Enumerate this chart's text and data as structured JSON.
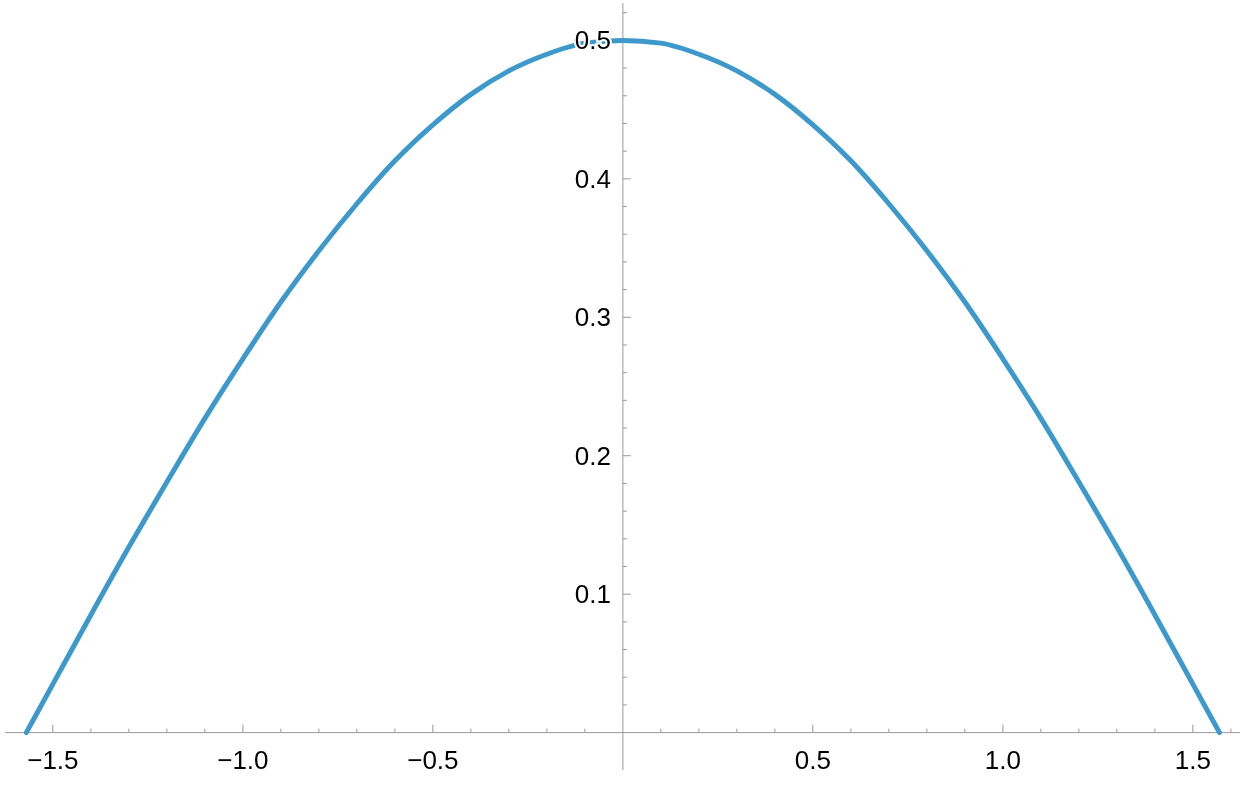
{
  "chart_data": {
    "type": "line",
    "x": [
      -1.57,
      -1.5,
      -1.4,
      -1.3,
      -1.2,
      -1.1,
      -1.0,
      -0.9,
      -0.8,
      -0.7,
      -0.6,
      -0.5,
      -0.4,
      -0.3,
      -0.2,
      -0.1,
      0,
      0.1,
      0.2,
      0.3,
      0.4,
      0.5,
      0.6,
      0.7,
      0.8,
      0.9,
      1.0,
      1.1,
      1.2,
      1.3,
      1.4,
      1.5,
      1.57
    ],
    "series": [
      {
        "color": "#3d98cc",
        "values": [
          0.0,
          0.035,
          0.085,
          0.134,
          0.181,
          0.227,
          0.27,
          0.311,
          0.348,
          0.382,
          0.413,
          0.439,
          0.461,
          0.478,
          0.49,
          0.498,
          0.5,
          0.498,
          0.49,
          0.478,
          0.461,
          0.439,
          0.413,
          0.382,
          0.348,
          0.311,
          0.27,
          0.227,
          0.181,
          0.134,
          0.085,
          0.035,
          0.0
        ]
      }
    ],
    "xlim": [
      -1.626,
      1.624
    ],
    "ylim": [
      -0.027,
      0.527
    ],
    "xticks": [
      {
        "value": -1.5,
        "label": "−1.5"
      },
      {
        "value": -1.4,
        "label": null
      },
      {
        "value": -1.3,
        "label": null
      },
      {
        "value": -1.2,
        "label": null
      },
      {
        "value": -1.1,
        "label": null
      },
      {
        "value": -1.0,
        "label": "−1.0"
      },
      {
        "value": -0.9,
        "label": null
      },
      {
        "value": -0.8,
        "label": null
      },
      {
        "value": -0.7,
        "label": null
      },
      {
        "value": -0.6,
        "label": null
      },
      {
        "value": -0.5,
        "label": "−0.5"
      },
      {
        "value": -0.4,
        "label": null
      },
      {
        "value": -0.3,
        "label": null
      },
      {
        "value": -0.2,
        "label": null
      },
      {
        "value": -0.1,
        "label": null
      },
      {
        "value": 0.1,
        "label": null
      },
      {
        "value": 0.2,
        "label": null
      },
      {
        "value": 0.3,
        "label": null
      },
      {
        "value": 0.4,
        "label": null
      },
      {
        "value": 0.5,
        "label": "0.5"
      },
      {
        "value": 0.6,
        "label": null
      },
      {
        "value": 0.7,
        "label": null
      },
      {
        "value": 0.8,
        "label": null
      },
      {
        "value": 0.9,
        "label": null
      },
      {
        "value": 1.0,
        "label": "1.0"
      },
      {
        "value": 1.1,
        "label": null
      },
      {
        "value": 1.2,
        "label": null
      },
      {
        "value": 1.3,
        "label": null
      },
      {
        "value": 1.4,
        "label": null
      },
      {
        "value": 1.5,
        "label": "1.5"
      },
      {
        "value": 1.6,
        "label": null
      }
    ],
    "yticks": [
      {
        "value": 0.02,
        "label": null
      },
      {
        "value": 0.04,
        "label": null
      },
      {
        "value": 0.06,
        "label": null
      },
      {
        "value": 0.08,
        "label": null
      },
      {
        "value": 0.1,
        "label": "0.1"
      },
      {
        "value": 0.12,
        "label": null
      },
      {
        "value": 0.14,
        "label": null
      },
      {
        "value": 0.16,
        "label": null
      },
      {
        "value": 0.18,
        "label": null
      },
      {
        "value": 0.2,
        "label": "0.2"
      },
      {
        "value": 0.22,
        "label": null
      },
      {
        "value": 0.24,
        "label": null
      },
      {
        "value": 0.26,
        "label": null
      },
      {
        "value": 0.28,
        "label": null
      },
      {
        "value": 0.3,
        "label": "0.3"
      },
      {
        "value": 0.32,
        "label": null
      },
      {
        "value": 0.34,
        "label": null
      },
      {
        "value": 0.36,
        "label": null
      },
      {
        "value": 0.38,
        "label": null
      },
      {
        "value": 0.4,
        "label": "0.4"
      },
      {
        "value": 0.42,
        "label": null
      },
      {
        "value": 0.44,
        "label": null
      },
      {
        "value": 0.46,
        "label": null
      },
      {
        "value": 0.48,
        "label": null
      },
      {
        "value": 0.5,
        "label": "0.5"
      },
      {
        "value": 0.52,
        "label": null
      }
    ],
    "grid": false,
    "marker": "none",
    "line_style": "solid"
  }
}
